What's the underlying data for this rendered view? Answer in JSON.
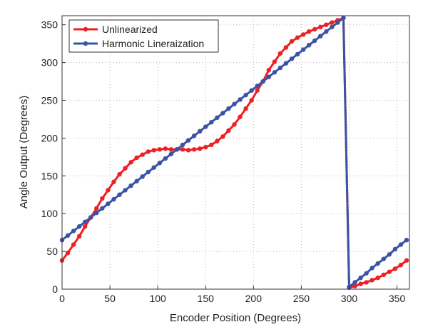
{
  "chart_data": {
    "type": "line",
    "title": "",
    "xlabel": "Encoder Position (Degrees)",
    "ylabel": "Angle Output (Degrees)",
    "xlim": [
      0,
      363
    ],
    "ylim": [
      0,
      362
    ],
    "xticks": [
      0,
      50,
      100,
      150,
      200,
      250,
      300,
      350
    ],
    "yticks": [
      0,
      50,
      100,
      150,
      200,
      250,
      300,
      350
    ],
    "grid": true,
    "legend_position": "top-left",
    "x": [
      0,
      6,
      12,
      18,
      24,
      30,
      36,
      42,
      48,
      54,
      60,
      66,
      72,
      78,
      84,
      90,
      96,
      102,
      108,
      114,
      120,
      126,
      132,
      138,
      144,
      150,
      156,
      162,
      168,
      174,
      180,
      186,
      192,
      198,
      204,
      210,
      216,
      222,
      228,
      234,
      240,
      246,
      252,
      258,
      264,
      270,
      276,
      282,
      288,
      294,
      300,
      306,
      312,
      318,
      324,
      330,
      336,
      342,
      348,
      354,
      360
    ],
    "series": [
      {
        "name": "Unlinearized",
        "color": "#ee2024",
        "values": [
          38,
          48,
          59,
          70,
          83,
          95,
          107,
          120,
          131,
          142,
          152,
          160,
          168,
          174,
          178,
          182,
          184,
          185,
          186,
          185,
          185,
          185,
          184,
          185,
          186,
          188,
          191,
          196,
          202,
          210,
          218,
          228,
          239,
          250,
          263,
          275,
          290,
          301,
          312,
          320,
          328,
          333,
          337,
          341,
          344,
          347,
          350,
          353,
          356,
          359,
          2,
          4,
          7,
          9,
          12,
          15,
          19,
          23,
          27,
          32,
          38
        ]
      },
      {
        "name": "Harmonic Lineraization",
        "color": "#3a53a4",
        "values": [
          65,
          71,
          77,
          83,
          89,
          95,
          101,
          107,
          113,
          119,
          125,
          131,
          137,
          143,
          149,
          155,
          161,
          167,
          173,
          179,
          185,
          191,
          197,
          203,
          209,
          215,
          221,
          227,
          233,
          239,
          245,
          251,
          257,
          263,
          269,
          275,
          281,
          287,
          293,
          299,
          305,
          311,
          317,
          323,
          329,
          335,
          341,
          347,
          353,
          359,
          3,
          9,
          15,
          21,
          28,
          34,
          40,
          46,
          53,
          59,
          65
        ]
      }
    ]
  }
}
